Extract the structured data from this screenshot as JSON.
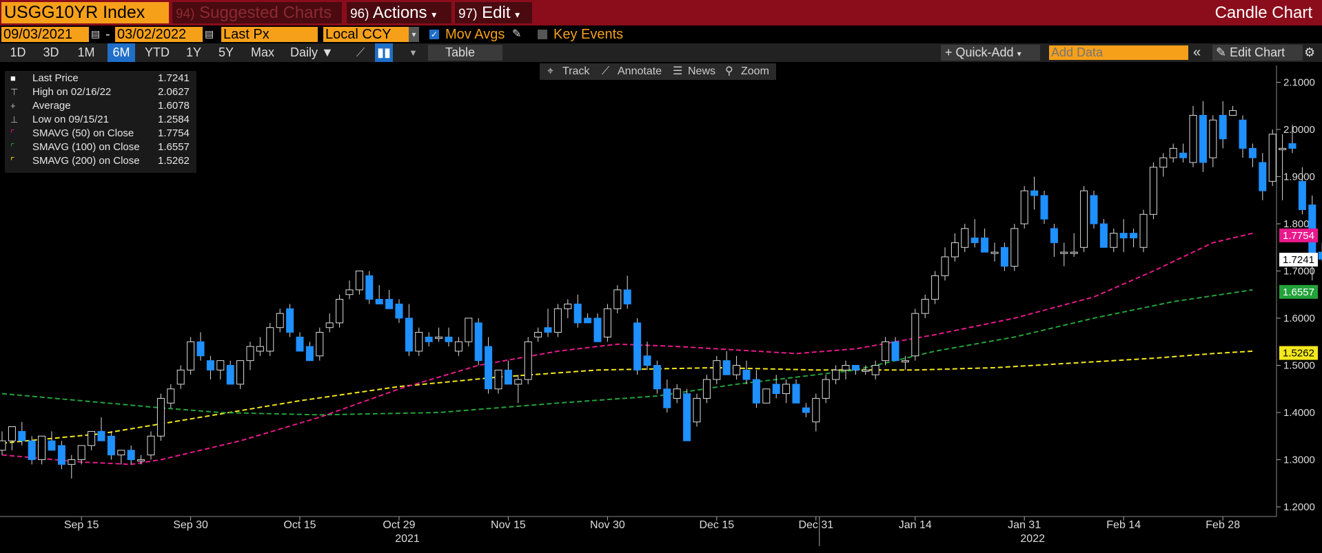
{
  "header": {
    "ticker": "USGG10YR Index",
    "suggested_num": "94)",
    "suggested": "Suggested Charts",
    "actions_num": "96)",
    "actions": "Actions",
    "edit_num": "97)",
    "edit": "Edit",
    "view_title": "Candle Chart"
  },
  "settings": {
    "start_date": "09/03/2021",
    "date_sep": "-",
    "end_date": "03/02/2022",
    "field": "Last Px",
    "currency": "Local CCY",
    "mov_avgs": "Mov Avgs",
    "key_events": "Key Events"
  },
  "toolbar": {
    "ranges": [
      "1D",
      "3D",
      "1M",
      "6M",
      "YTD",
      "1Y",
      "5Y",
      "Max"
    ],
    "active_range": "6M",
    "frequency": "Daily",
    "table": "Table",
    "quick_add": "Quick-Add",
    "add_data_placeholder": "Add Data",
    "edit_chart": "Edit Chart"
  },
  "tools": {
    "track": "Track",
    "annotate": "Annotate",
    "news": "News",
    "zoom": "Zoom"
  },
  "legend": [
    {
      "label": "Last Price",
      "value": "1.7241",
      "color": "#ffffff"
    },
    {
      "label": "High on 02/16/22",
      "value": "2.0627",
      "color": "#bbbbbb"
    },
    {
      "label": "Average",
      "value": "1.6078",
      "color": "#bbbbbb"
    },
    {
      "label": "Low on 09/15/21",
      "value": "1.2584",
      "color": "#bbbbbb"
    },
    {
      "label": "SMAVG (50)  on Close",
      "value": "1.7754",
      "color": "#e8198b"
    },
    {
      "label": "SMAVG (100)  on Close",
      "value": "1.6557",
      "color": "#23a33a"
    },
    {
      "label": "SMAVG (200)  on Close",
      "value": "1.5262",
      "color": "#f4e81c"
    }
  ],
  "chart_data": {
    "type": "candlestick",
    "ylim": [
      1.18,
      2.12
    ],
    "y_ticks": [
      "1.2000",
      "1.3000",
      "1.4000",
      "1.5000",
      "1.6000",
      "1.7000",
      "1.8000",
      "1.9000",
      "2.0000",
      "2.1000"
    ],
    "x_ticks": [
      "Sep 15",
      "Sep 30",
      "Oct 15",
      "Oct 29",
      "Nov 15",
      "Nov 30",
      "Dec 15",
      "Dec 31",
      "Jan 14",
      "Jan 31",
      "Feb 14",
      "Feb 28"
    ],
    "x_tick_index": [
      8,
      19,
      30,
      40,
      51,
      61,
      72,
      82,
      92,
      103,
      113,
      123
    ],
    "year_labels": [
      {
        "label": "2021",
        "index": 40
      },
      {
        "label": "2022",
        "index": 103
      }
    ],
    "year_divider_index": 82,
    "candles": [
      {
        "o": 1.32,
        "h": 1.36,
        "l": 1.31,
        "c": 1.34
      },
      {
        "o": 1.34,
        "h": 1.37,
        "l": 1.32,
        "c": 1.37
      },
      {
        "o": 1.36,
        "h": 1.38,
        "l": 1.33,
        "c": 1.34
      },
      {
        "o": 1.34,
        "h": 1.35,
        "l": 1.29,
        "c": 1.3
      },
      {
        "o": 1.3,
        "h": 1.35,
        "l": 1.29,
        "c": 1.35
      },
      {
        "o": 1.34,
        "h": 1.36,
        "l": 1.32,
        "c": 1.32
      },
      {
        "o": 1.33,
        "h": 1.34,
        "l": 1.28,
        "c": 1.29
      },
      {
        "o": 1.29,
        "h": 1.31,
        "l": 1.26,
        "c": 1.3
      },
      {
        "o": 1.3,
        "h": 1.33,
        "l": 1.29,
        "c": 1.33
      },
      {
        "o": 1.33,
        "h": 1.36,
        "l": 1.32,
        "c": 1.36
      },
      {
        "o": 1.36,
        "h": 1.39,
        "l": 1.34,
        "c": 1.34
      },
      {
        "o": 1.35,
        "h": 1.36,
        "l": 1.3,
        "c": 1.31
      },
      {
        "o": 1.31,
        "h": 1.32,
        "l": 1.29,
        "c": 1.32
      },
      {
        "o": 1.32,
        "h": 1.33,
        "l": 1.29,
        "c": 1.3
      },
      {
        "o": 1.3,
        "h": 1.31,
        "l": 1.29,
        "c": 1.3
      },
      {
        "o": 1.31,
        "h": 1.36,
        "l": 1.3,
        "c": 1.35
      },
      {
        "o": 1.35,
        "h": 1.44,
        "l": 1.34,
        "c": 1.43
      },
      {
        "o": 1.42,
        "h": 1.46,
        "l": 1.41,
        "c": 1.45
      },
      {
        "o": 1.46,
        "h": 1.5,
        "l": 1.45,
        "c": 1.49
      },
      {
        "o": 1.49,
        "h": 1.56,
        "l": 1.48,
        "c": 1.55
      },
      {
        "o": 1.55,
        "h": 1.57,
        "l": 1.51,
        "c": 1.52
      },
      {
        "o": 1.51,
        "h": 1.52,
        "l": 1.47,
        "c": 1.49
      },
      {
        "o": 1.49,
        "h": 1.51,
        "l": 1.47,
        "c": 1.51
      },
      {
        "o": 1.5,
        "h": 1.51,
        "l": 1.46,
        "c": 1.46
      },
      {
        "o": 1.46,
        "h": 1.51,
        "l": 1.45,
        "c": 1.51
      },
      {
        "o": 1.51,
        "h": 1.55,
        "l": 1.49,
        "c": 1.54
      },
      {
        "o": 1.53,
        "h": 1.56,
        "l": 1.52,
        "c": 1.54
      },
      {
        "o": 1.53,
        "h": 1.59,
        "l": 1.52,
        "c": 1.58
      },
      {
        "o": 1.58,
        "h": 1.62,
        "l": 1.57,
        "c": 1.61
      },
      {
        "o": 1.62,
        "h": 1.63,
        "l": 1.56,
        "c": 1.57
      },
      {
        "o": 1.56,
        "h": 1.57,
        "l": 1.53,
        "c": 1.53
      },
      {
        "o": 1.54,
        "h": 1.55,
        "l": 1.51,
        "c": 1.51
      },
      {
        "o": 1.52,
        "h": 1.58,
        "l": 1.51,
        "c": 1.57
      },
      {
        "o": 1.58,
        "h": 1.61,
        "l": 1.57,
        "c": 1.59
      },
      {
        "o": 1.59,
        "h": 1.65,
        "l": 1.58,
        "c": 1.64
      },
      {
        "o": 1.65,
        "h": 1.68,
        "l": 1.64,
        "c": 1.66
      },
      {
        "o": 1.66,
        "h": 1.7,
        "l": 1.65,
        "c": 1.7
      },
      {
        "o": 1.69,
        "h": 1.7,
        "l": 1.63,
        "c": 1.64
      },
      {
        "o": 1.64,
        "h": 1.67,
        "l": 1.63,
        "c": 1.63
      },
      {
        "o": 1.64,
        "h": 1.66,
        "l": 1.62,
        "c": 1.62
      },
      {
        "o": 1.63,
        "h": 1.64,
        "l": 1.59,
        "c": 1.6
      },
      {
        "o": 1.6,
        "h": 1.63,
        "l": 1.52,
        "c": 1.53
      },
      {
        "o": 1.53,
        "h": 1.58,
        "l": 1.52,
        "c": 1.57
      },
      {
        "o": 1.56,
        "h": 1.57,
        "l": 1.54,
        "c": 1.55
      },
      {
        "o": 1.56,
        "h": 1.58,
        "l": 1.55,
        "c": 1.56
      },
      {
        "o": 1.56,
        "h": 1.58,
        "l": 1.54,
        "c": 1.55
      },
      {
        "o": 1.53,
        "h": 1.56,
        "l": 1.52,
        "c": 1.55
      },
      {
        "o": 1.55,
        "h": 1.6,
        "l": 1.54,
        "c": 1.6
      },
      {
        "o": 1.59,
        "h": 1.6,
        "l": 1.5,
        "c": 1.51
      },
      {
        "o": 1.54,
        "h": 1.56,
        "l": 1.44,
        "c": 1.45
      },
      {
        "o": 1.45,
        "h": 1.49,
        "l": 1.44,
        "c": 1.49
      },
      {
        "o": 1.49,
        "h": 1.51,
        "l": 1.46,
        "c": 1.46
      },
      {
        "o": 1.46,
        "h": 1.48,
        "l": 1.42,
        "c": 1.47
      },
      {
        "o": 1.47,
        "h": 1.56,
        "l": 1.46,
        "c": 1.55
      },
      {
        "o": 1.56,
        "h": 1.58,
        "l": 1.55,
        "c": 1.57
      },
      {
        "o": 1.58,
        "h": 1.62,
        "l": 1.56,
        "c": 1.57
      },
      {
        "o": 1.57,
        "h": 1.63,
        "l": 1.56,
        "c": 1.62
      },
      {
        "o": 1.62,
        "h": 1.64,
        "l": 1.6,
        "c": 1.63
      },
      {
        "o": 1.63,
        "h": 1.65,
        "l": 1.58,
        "c": 1.59
      },
      {
        "o": 1.6,
        "h": 1.61,
        "l": 1.59,
        "c": 1.59
      },
      {
        "o": 1.6,
        "h": 1.61,
        "l": 1.55,
        "c": 1.55
      },
      {
        "o": 1.56,
        "h": 1.63,
        "l": 1.55,
        "c": 1.62
      },
      {
        "o": 1.62,
        "h": 1.67,
        "l": 1.61,
        "c": 1.66
      },
      {
        "o": 1.66,
        "h": 1.69,
        "l": 1.62,
        "c": 1.63
      },
      {
        "o": 1.59,
        "h": 1.6,
        "l": 1.48,
        "c": 1.49
      },
      {
        "o": 1.52,
        "h": 1.55,
        "l": 1.49,
        "c": 1.5
      },
      {
        "o": 1.5,
        "h": 1.51,
        "l": 1.44,
        "c": 1.45
      },
      {
        "o": 1.45,
        "h": 1.47,
        "l": 1.4,
        "c": 1.41
      },
      {
        "o": 1.43,
        "h": 1.46,
        "l": 1.42,
        "c": 1.45
      },
      {
        "o": 1.44,
        "h": 1.45,
        "l": 1.34,
        "c": 1.34
      },
      {
        "o": 1.38,
        "h": 1.44,
        "l": 1.37,
        "c": 1.43
      },
      {
        "o": 1.43,
        "h": 1.48,
        "l": 1.42,
        "c": 1.47
      },
      {
        "o": 1.47,
        "h": 1.52,
        "l": 1.46,
        "c": 1.51
      },
      {
        "o": 1.51,
        "h": 1.53,
        "l": 1.48,
        "c": 1.48
      },
      {
        "o": 1.48,
        "h": 1.52,
        "l": 1.47,
        "c": 1.5
      },
      {
        "o": 1.49,
        "h": 1.51,
        "l": 1.46,
        "c": 1.47
      },
      {
        "o": 1.47,
        "h": 1.49,
        "l": 1.41,
        "c": 1.42
      },
      {
        "o": 1.42,
        "h": 1.45,
        "l": 1.42,
        "c": 1.45
      },
      {
        "o": 1.46,
        "h": 1.48,
        "l": 1.43,
        "c": 1.44
      },
      {
        "o": 1.44,
        "h": 1.47,
        "l": 1.42,
        "c": 1.46
      },
      {
        "o": 1.46,
        "h": 1.47,
        "l": 1.42,
        "c": 1.42
      },
      {
        "o": 1.41,
        "h": 1.42,
        "l": 1.39,
        "c": 1.4
      },
      {
        "o": 1.38,
        "h": 1.44,
        "l": 1.36,
        "c": 1.43
      },
      {
        "o": 1.43,
        "h": 1.48,
        "l": 1.42,
        "c": 1.47
      },
      {
        "o": 1.47,
        "h": 1.5,
        "l": 1.46,
        "c": 1.49
      },
      {
        "o": 1.49,
        "h": 1.51,
        "l": 1.47,
        "c": 1.5
      },
      {
        "o": 1.5,
        "h": 1.5,
        "l": 1.48,
        "c": 1.49
      },
      {
        "o": 1.49,
        "h": 1.5,
        "l": 1.48,
        "c": 1.49
      },
      {
        "o": 1.48,
        "h": 1.51,
        "l": 1.47,
        "c": 1.5
      },
      {
        "o": 1.51,
        "h": 1.56,
        "l": 1.5,
        "c": 1.55
      },
      {
        "o": 1.55,
        "h": 1.56,
        "l": 1.51,
        "c": 1.51
      },
      {
        "o": 1.51,
        "h": 1.52,
        "l": 1.49,
        "c": 1.51
      },
      {
        "o": 1.52,
        "h": 1.62,
        "l": 1.51,
        "c": 1.61
      },
      {
        "o": 1.61,
        "h": 1.65,
        "l": 1.6,
        "c": 1.64
      },
      {
        "o": 1.64,
        "h": 1.7,
        "l": 1.63,
        "c": 1.69
      },
      {
        "o": 1.69,
        "h": 1.75,
        "l": 1.68,
        "c": 1.73
      },
      {
        "o": 1.73,
        "h": 1.78,
        "l": 1.72,
        "c": 1.76
      },
      {
        "o": 1.75,
        "h": 1.8,
        "l": 1.74,
        "c": 1.79
      },
      {
        "o": 1.77,
        "h": 1.81,
        "l": 1.75,
        "c": 1.76
      },
      {
        "o": 1.77,
        "h": 1.79,
        "l": 1.74,
        "c": 1.74
      },
      {
        "o": 1.74,
        "h": 1.76,
        "l": 1.72,
        "c": 1.74
      },
      {
        "o": 1.75,
        "h": 1.76,
        "l": 1.7,
        "c": 1.71
      },
      {
        "o": 1.71,
        "h": 1.8,
        "l": 1.7,
        "c": 1.79
      },
      {
        "o": 1.8,
        "h": 1.88,
        "l": 1.79,
        "c": 1.87
      },
      {
        "o": 1.87,
        "h": 1.9,
        "l": 1.83,
        "c": 1.86
      },
      {
        "o": 1.86,
        "h": 1.87,
        "l": 1.8,
        "c": 1.81
      },
      {
        "o": 1.79,
        "h": 1.8,
        "l": 1.73,
        "c": 1.76
      },
      {
        "o": 1.74,
        "h": 1.76,
        "l": 1.71,
        "c": 1.74
      },
      {
        "o": 1.74,
        "h": 1.78,
        "l": 1.73,
        "c": 1.74
      },
      {
        "o": 1.75,
        "h": 1.88,
        "l": 1.74,
        "c": 1.87
      },
      {
        "o": 1.86,
        "h": 1.87,
        "l": 1.79,
        "c": 1.8
      },
      {
        "o": 1.8,
        "h": 1.81,
        "l": 1.75,
        "c": 1.75
      },
      {
        "o": 1.75,
        "h": 1.79,
        "l": 1.74,
        "c": 1.78
      },
      {
        "o": 1.78,
        "h": 1.81,
        "l": 1.74,
        "c": 1.77
      },
      {
        "o": 1.78,
        "h": 1.79,
        "l": 1.75,
        "c": 1.77
      },
      {
        "o": 1.75,
        "h": 1.83,
        "l": 1.74,
        "c": 1.82
      },
      {
        "o": 1.82,
        "h": 1.93,
        "l": 1.81,
        "c": 1.92
      },
      {
        "o": 1.92,
        "h": 1.95,
        "l": 1.9,
        "c": 1.94
      },
      {
        "o": 1.94,
        "h": 1.97,
        "l": 1.93,
        "c": 1.96
      },
      {
        "o": 1.95,
        "h": 1.97,
        "l": 1.93,
        "c": 1.94
      },
      {
        "o": 1.93,
        "h": 2.05,
        "l": 1.92,
        "c": 2.03
      },
      {
        "o": 2.03,
        "h": 2.06,
        "l": 1.91,
        "c": 1.93
      },
      {
        "o": 1.94,
        "h": 2.03,
        "l": 1.92,
        "c": 2.02
      },
      {
        "o": 2.03,
        "h": 2.06,
        "l": 1.96,
        "c": 1.98
      },
      {
        "o": 2.03,
        "h": 2.05,
        "l": 2.03,
        "c": 2.04
      },
      {
        "o": 2.02,
        "h": 2.03,
        "l": 1.94,
        "c": 1.96
      },
      {
        "o": 1.96,
        "h": 1.97,
        "l": 1.92,
        "c": 1.94
      },
      {
        "o": 1.93,
        "h": 1.95,
        "l": 1.85,
        "c": 1.87
      },
      {
        "o": 1.89,
        "h": 2.0,
        "l": 1.88,
        "c": 1.99
      },
      {
        "o": 1.96,
        "h": 1.99,
        "l": 1.85,
        "c": 1.96
      },
      {
        "o": 1.97,
        "h": 2.01,
        "l": 1.95,
        "c": 1.96
      },
      {
        "o": 1.89,
        "h": 1.92,
        "l": 1.82,
        "c": 1.83
      },
      {
        "o": 1.84,
        "h": 1.86,
        "l": 1.68,
        "c": 1.73
      },
      {
        "o": 1.74,
        "h": 1.76,
        "l": 1.72,
        "c": 1.725
      }
    ],
    "sma50": [
      [
        0,
        1.31
      ],
      [
        8,
        1.295
      ],
      [
        13,
        1.29
      ],
      [
        16,
        1.3
      ],
      [
        24,
        1.34
      ],
      [
        32,
        1.39
      ],
      [
        40,
        1.45
      ],
      [
        48,
        1.5
      ],
      [
        56,
        1.53
      ],
      [
        62,
        1.545
      ],
      [
        68,
        1.54
      ],
      [
        76,
        1.53
      ],
      [
        80,
        1.525
      ],
      [
        86,
        1.535
      ],
      [
        94,
        1.565
      ],
      [
        102,
        1.6
      ],
      [
        110,
        1.645
      ],
      [
        116,
        1.7
      ],
      [
        122,
        1.76
      ],
      [
        126,
        1.78
      ]
    ],
    "sma100": [
      [
        0,
        1.44
      ],
      [
        8,
        1.425
      ],
      [
        16,
        1.41
      ],
      [
        22,
        1.4
      ],
      [
        32,
        1.395
      ],
      [
        44,
        1.4
      ],
      [
        56,
        1.42
      ],
      [
        66,
        1.435
      ],
      [
        74,
        1.46
      ],
      [
        80,
        1.475
      ],
      [
        86,
        1.49
      ],
      [
        94,
        1.53
      ],
      [
        102,
        1.56
      ],
      [
        110,
        1.6
      ],
      [
        118,
        1.635
      ],
      [
        126,
        1.66
      ]
    ],
    "sma200": [
      [
        0,
        1.335
      ],
      [
        10,
        1.355
      ],
      [
        20,
        1.39
      ],
      [
        30,
        1.425
      ],
      [
        40,
        1.455
      ],
      [
        50,
        1.475
      ],
      [
        60,
        1.49
      ],
      [
        72,
        1.495
      ],
      [
        82,
        1.49
      ],
      [
        92,
        1.49
      ],
      [
        100,
        1.495
      ],
      [
        108,
        1.505
      ],
      [
        116,
        1.515
      ],
      [
        122,
        1.525
      ],
      [
        126,
        1.53
      ]
    ],
    "price_tags": [
      {
        "value": "1.7754",
        "y": 1.7754,
        "bg": "#e8198b",
        "fg": "#ffffff"
      },
      {
        "value": "1.7241",
        "y": 1.7241,
        "bg": "#ffffff",
        "fg": "#000000"
      },
      {
        "value": "1.6557",
        "y": 1.6557,
        "bg": "#23a33a",
        "fg": "#ffffff"
      },
      {
        "value": "1.5262",
        "y": 1.5262,
        "bg": "#f4e81c",
        "fg": "#000000"
      }
    ]
  }
}
